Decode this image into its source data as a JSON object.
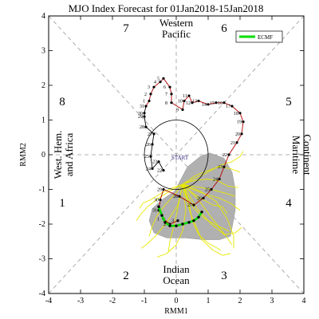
{
  "title": "MJO Index Forecast for 01Jan2018-15Jan2018",
  "xlabel": "RMM1",
  "ylabel": "RMM2",
  "legend": {
    "label": "ECMF",
    "color": "#00dd00"
  },
  "phases": [
    "1",
    "2",
    "3",
    "4",
    "5",
    "6",
    "7",
    "8"
  ],
  "regions": {
    "western_pacific": [
      "Western",
      "Pacific"
    ],
    "indian_ocean": [
      "Indian",
      "Ocean"
    ],
    "maritime_continent": [
      "Maritime",
      "Continent"
    ],
    "west_hem_africa": [
      "West. Hem.",
      "and Africa"
    ]
  },
  "start_label": "START",
  "colors": {
    "observed": "#000000",
    "observed_recent": "#b00000",
    "ensemble": "#e8e800",
    "spread": "#a8a8a8",
    "ensemble_mean": "#00dd00"
  },
  "chart_data": {
    "type": "line",
    "xlim": [
      -4,
      4
    ],
    "ylim": [
      -4,
      4
    ],
    "xticks": [
      "-4",
      "-3",
      "-2",
      "-1",
      "0",
      "1",
      "2",
      "3",
      "4"
    ],
    "yticks": [
      "-4",
      "-3",
      "-2",
      "-1",
      "0",
      "1",
      "2",
      "3",
      "4"
    ],
    "unit_circle": true,
    "observed": [
      {
        "day": "22",
        "x": -0.4,
        "y": -0.45
      },
      {
        "day": "23",
        "x": -0.55,
        "y": -0.2
      },
      {
        "day": "24",
        "x": -0.75,
        "y": -0.4
      },
      {
        "day": "25",
        "x": -0.8,
        "y": -0.05
      },
      {
        "day": "26",
        "x": -0.75,
        "y": 0.3
      },
      {
        "day": "27",
        "x": -0.7,
        "y": 0.6
      },
      {
        "day": "28",
        "x": -0.95,
        "y": 0.8
      },
      {
        "day": "29",
        "x": -1.0,
        "y": 1.1
      },
      {
        "day": "30",
        "x": -1.0,
        "y": 1.2
      },
      {
        "day": "31",
        "x": -0.95,
        "y": 1.4
      },
      {
        "day": "1",
        "x": -0.85,
        "y": 1.55
      },
      {
        "day": "2",
        "x": -0.8,
        "y": 1.75
      },
      {
        "day": "3",
        "x": -0.7,
        "y": 1.95
      },
      {
        "day": "4",
        "x": -0.5,
        "y": 2.1
      },
      {
        "day": "5",
        "x": -0.4,
        "y": 2.2
      },
      {
        "day": "6",
        "x": -0.2,
        "y": 1.95
      },
      {
        "day": "7",
        "x": -0.15,
        "y": 1.75
      },
      {
        "day": "8",
        "x": -0.15,
        "y": 1.5
      },
      {
        "day": "9",
        "x": 0.2,
        "y": 1.3
      },
      {
        "day": "10",
        "x": 0.25,
        "y": 1.55
      },
      {
        "day": "11",
        "x": 0.4,
        "y": 1.7
      },
      {
        "day": "12",
        "x": 0.5,
        "y": 1.5
      },
      {
        "day": "13",
        "x": 0.7,
        "y": 1.55
      },
      {
        "day": "14",
        "x": 1.0,
        "y": 1.45
      },
      {
        "day": "15",
        "x": 1.25,
        "y": 1.5
      },
      {
        "day": "16",
        "x": 1.5,
        "y": 1.5
      },
      {
        "day": "17",
        "x": 1.75,
        "y": 1.4
      },
      {
        "day": "18",
        "x": 2.0,
        "y": 1.2
      },
      {
        "day": "19",
        "x": 2.1,
        "y": 0.95
      },
      {
        "day": "20",
        "x": 2.05,
        "y": 0.6
      },
      {
        "day": "21",
        "x": 1.9,
        "y": 0.35
      },
      {
        "day": "22",
        "x": 1.65,
        "y": 0.0
      },
      {
        "day": "23",
        "x": 1.5,
        "y": -0.35
      },
      {
        "day": "24",
        "x": 1.35,
        "y": -0.7
      },
      {
        "day": "25",
        "x": 1.1,
        "y": -1.0
      },
      {
        "day": "26",
        "x": 0.85,
        "y": -1.25
      },
      {
        "day": "27",
        "x": 0.55,
        "y": -1.45
      },
      {
        "day": "28",
        "x": 0.1,
        "y": -1.2
      },
      {
        "day": "29",
        "x": -0.4,
        "y": -1.0
      },
      {
        "day": "30",
        "x": -0.5,
        "y": -1.3
      },
      {
        "day": "31",
        "x": -0.55,
        "y": -1.6
      },
      {
        "day": "1",
        "x": -0.4,
        "y": -1.85
      },
      {
        "day": "2",
        "x": -0.2,
        "y": -2.0
      },
      {
        "day": "3",
        "x": 0.05,
        "y": -1.9
      }
    ],
    "ensemble_mean": [
      {
        "x": -0.55,
        "y": -1.5
      },
      {
        "x": -0.45,
        "y": -1.75
      },
      {
        "x": -0.35,
        "y": -1.95
      },
      {
        "x": -0.2,
        "y": -2.05
      },
      {
        "x": 0.0,
        "y": -2.05
      },
      {
        "x": 0.2,
        "y": -2.0
      },
      {
        "x": 0.4,
        "y": -1.95
      },
      {
        "x": 0.55,
        "y": -1.9
      },
      {
        "x": 0.7,
        "y": -1.8
      },
      {
        "x": 0.8,
        "y": -1.65
      }
    ],
    "spread_polygon": [
      {
        "x": 0.35,
        "y": -0.35
      },
      {
        "x": 0.75,
        "y": -0.05
      },
      {
        "x": 1.05,
        "y": 0.05
      },
      {
        "x": 1.5,
        "y": -0.1
      },
      {
        "x": 1.75,
        "y": -0.5
      },
      {
        "x": 1.85,
        "y": -1.0
      },
      {
        "x": 1.85,
        "y": -1.6
      },
      {
        "x": 1.7,
        "y": -2.35
      },
      {
        "x": 1.35,
        "y": -2.45
      },
      {
        "x": 0.85,
        "y": -2.45
      },
      {
        "x": 0.3,
        "y": -2.4
      },
      {
        "x": -0.3,
        "y": -2.4
      },
      {
        "x": -0.7,
        "y": -2.25
      },
      {
        "x": -0.85,
        "y": -1.9
      },
      {
        "x": -0.75,
        "y": -1.55
      },
      {
        "x": -0.45,
        "y": -1.3
      },
      {
        "x": -0.05,
        "y": -1.05
      }
    ],
    "ensemble_members": [
      [
        {
          "x": 0.2,
          "y": -0.85
        },
        {
          "x": 0.5,
          "y": -1.1
        },
        {
          "x": 0.85,
          "y": -1.3
        },
        {
          "x": 1.15,
          "y": -1.45
        },
        {
          "x": 1.45,
          "y": -1.5
        },
        {
          "x": 1.6,
          "y": -1.7
        }
      ],
      [
        {
          "x": 0.2,
          "y": -0.85
        },
        {
          "x": 0.45,
          "y": -0.9
        },
        {
          "x": 0.8,
          "y": -0.95
        },
        {
          "x": 1.1,
          "y": -1.0
        },
        {
          "x": 1.5,
          "y": -1.1
        },
        {
          "x": 1.85,
          "y": -1.2
        }
      ],
      [
        {
          "x": 0.2,
          "y": -0.85
        },
        {
          "x": 0.35,
          "y": -1.2
        },
        {
          "x": 0.55,
          "y": -1.55
        },
        {
          "x": 0.9,
          "y": -1.85
        },
        {
          "x": 1.3,
          "y": -2.05
        },
        {
          "x": 1.65,
          "y": -2.2
        }
      ],
      [
        {
          "x": 0.2,
          "y": -0.85
        },
        {
          "x": -0.05,
          "y": -1.15
        },
        {
          "x": -0.35,
          "y": -1.45
        },
        {
          "x": -0.6,
          "y": -1.75
        },
        {
          "x": -0.75,
          "y": -2.05
        },
        {
          "x": -0.85,
          "y": -2.35
        }
      ],
      [
        {
          "x": 0.2,
          "y": -0.85
        },
        {
          "x": 0.1,
          "y": -1.3
        },
        {
          "x": 0.0,
          "y": -1.75
        },
        {
          "x": -0.1,
          "y": -2.15
        },
        {
          "x": -0.2,
          "y": -2.5
        },
        {
          "x": -0.25,
          "y": -2.8
        }
      ],
      [
        {
          "x": 0.2,
          "y": -0.85
        },
        {
          "x": 0.6,
          "y": -0.6
        },
        {
          "x": 1.0,
          "y": -0.45
        },
        {
          "x": 1.35,
          "y": -0.35
        },
        {
          "x": 1.7,
          "y": -0.4
        },
        {
          "x": 2.0,
          "y": -0.5
        }
      ],
      [
        {
          "x": 0.2,
          "y": -0.85
        },
        {
          "x": 0.55,
          "y": -0.75
        },
        {
          "x": 0.95,
          "y": -0.7
        },
        {
          "x": 1.3,
          "y": -0.75
        },
        {
          "x": 1.6,
          "y": -0.9
        },
        {
          "x": 1.95,
          "y": -0.95
        }
      ],
      [
        {
          "x": 0.2,
          "y": -0.85
        },
        {
          "x": 0.4,
          "y": -1.4
        },
        {
          "x": 0.5,
          "y": -1.9
        },
        {
          "x": 0.7,
          "y": -2.3
        },
        {
          "x": 1.0,
          "y": -2.55
        },
        {
          "x": 1.4,
          "y": -2.75
        }
      ],
      [
        {
          "x": 0.2,
          "y": -0.85
        },
        {
          "x": -0.2,
          "y": -1.05
        },
        {
          "x": -0.55,
          "y": -1.25
        },
        {
          "x": -0.9,
          "y": -1.5
        },
        {
          "x": -1.1,
          "y": -1.7
        },
        {
          "x": -1.25,
          "y": -1.9
        }
      ],
      [
        {
          "x": 0.2,
          "y": -0.85
        },
        {
          "x": 0.7,
          "y": -1.3
        },
        {
          "x": 1.05,
          "y": -1.75
        },
        {
          "x": 1.35,
          "y": -2.1
        },
        {
          "x": 1.6,
          "y": -2.4
        },
        {
          "x": 1.75,
          "y": -2.6
        }
      ],
      [
        {
          "x": 0.2,
          "y": -0.85
        },
        {
          "x": 0.3,
          "y": -1.6
        },
        {
          "x": 0.2,
          "y": -2.2
        },
        {
          "x": 0.0,
          "y": -2.6
        },
        {
          "x": -0.3,
          "y": -2.85
        },
        {
          "x": -0.6,
          "y": -2.95
        }
      ],
      [
        {
          "x": 0.2,
          "y": -0.85
        },
        {
          "x": 0.9,
          "y": -0.55
        },
        {
          "x": 1.4,
          "y": -0.3
        },
        {
          "x": 1.75,
          "y": -0.2
        },
        {
          "x": 2.0,
          "y": -0.05
        },
        {
          "x": 2.1,
          "y": 0.1
        }
      ],
      [
        {
          "x": 0.2,
          "y": -0.85
        },
        {
          "x": -0.1,
          "y": -0.95
        },
        {
          "x": -0.45,
          "y": -1.1
        },
        {
          "x": -0.8,
          "y": -1.3
        },
        {
          "x": -1.05,
          "y": -1.4
        },
        {
          "x": -1.15,
          "y": -1.55
        }
      ],
      [
        {
          "x": 0.2,
          "y": -0.85
        },
        {
          "x": 0.65,
          "y": -1.55
        },
        {
          "x": 1.1,
          "y": -2.0
        },
        {
          "x": 1.5,
          "y": -2.3
        },
        {
          "x": 1.85,
          "y": -2.25
        },
        {
          "x": 2.05,
          "y": -2.1
        }
      ],
      [
        {
          "x": 0.2,
          "y": -0.85
        },
        {
          "x": 0.5,
          "y": -1.0
        },
        {
          "x": 0.95,
          "y": -1.15
        },
        {
          "x": 1.35,
          "y": -1.25
        },
        {
          "x": 1.7,
          "y": -1.4
        },
        {
          "x": 2.0,
          "y": -1.6
        }
      ],
      [
        {
          "x": 0.2,
          "y": -0.85
        },
        {
          "x": 0.05,
          "y": -1.45
        },
        {
          "x": -0.3,
          "y": -1.95
        },
        {
          "x": -0.65,
          "y": -2.35
        },
        {
          "x": -0.95,
          "y": -2.6
        },
        {
          "x": -1.1,
          "y": -2.7
        }
      ],
      [
        {
          "x": 0.2,
          "y": -0.85
        },
        {
          "x": 0.75,
          "y": -1.05
        },
        {
          "x": 1.25,
          "y": -1.35
        },
        {
          "x": 1.6,
          "y": -1.85
        },
        {
          "x": 1.8,
          "y": -2.35
        },
        {
          "x": 1.8,
          "y": -2.7
        }
      ],
      [
        {
          "x": 0.2,
          "y": -0.85
        },
        {
          "x": 0.45,
          "y": -1.7
        },
        {
          "x": 0.8,
          "y": -2.45
        },
        {
          "x": 1.15,
          "y": -2.75
        },
        {
          "x": 1.45,
          "y": -2.9
        },
        {
          "x": 1.7,
          "y": -2.85
        }
      ]
    ]
  }
}
